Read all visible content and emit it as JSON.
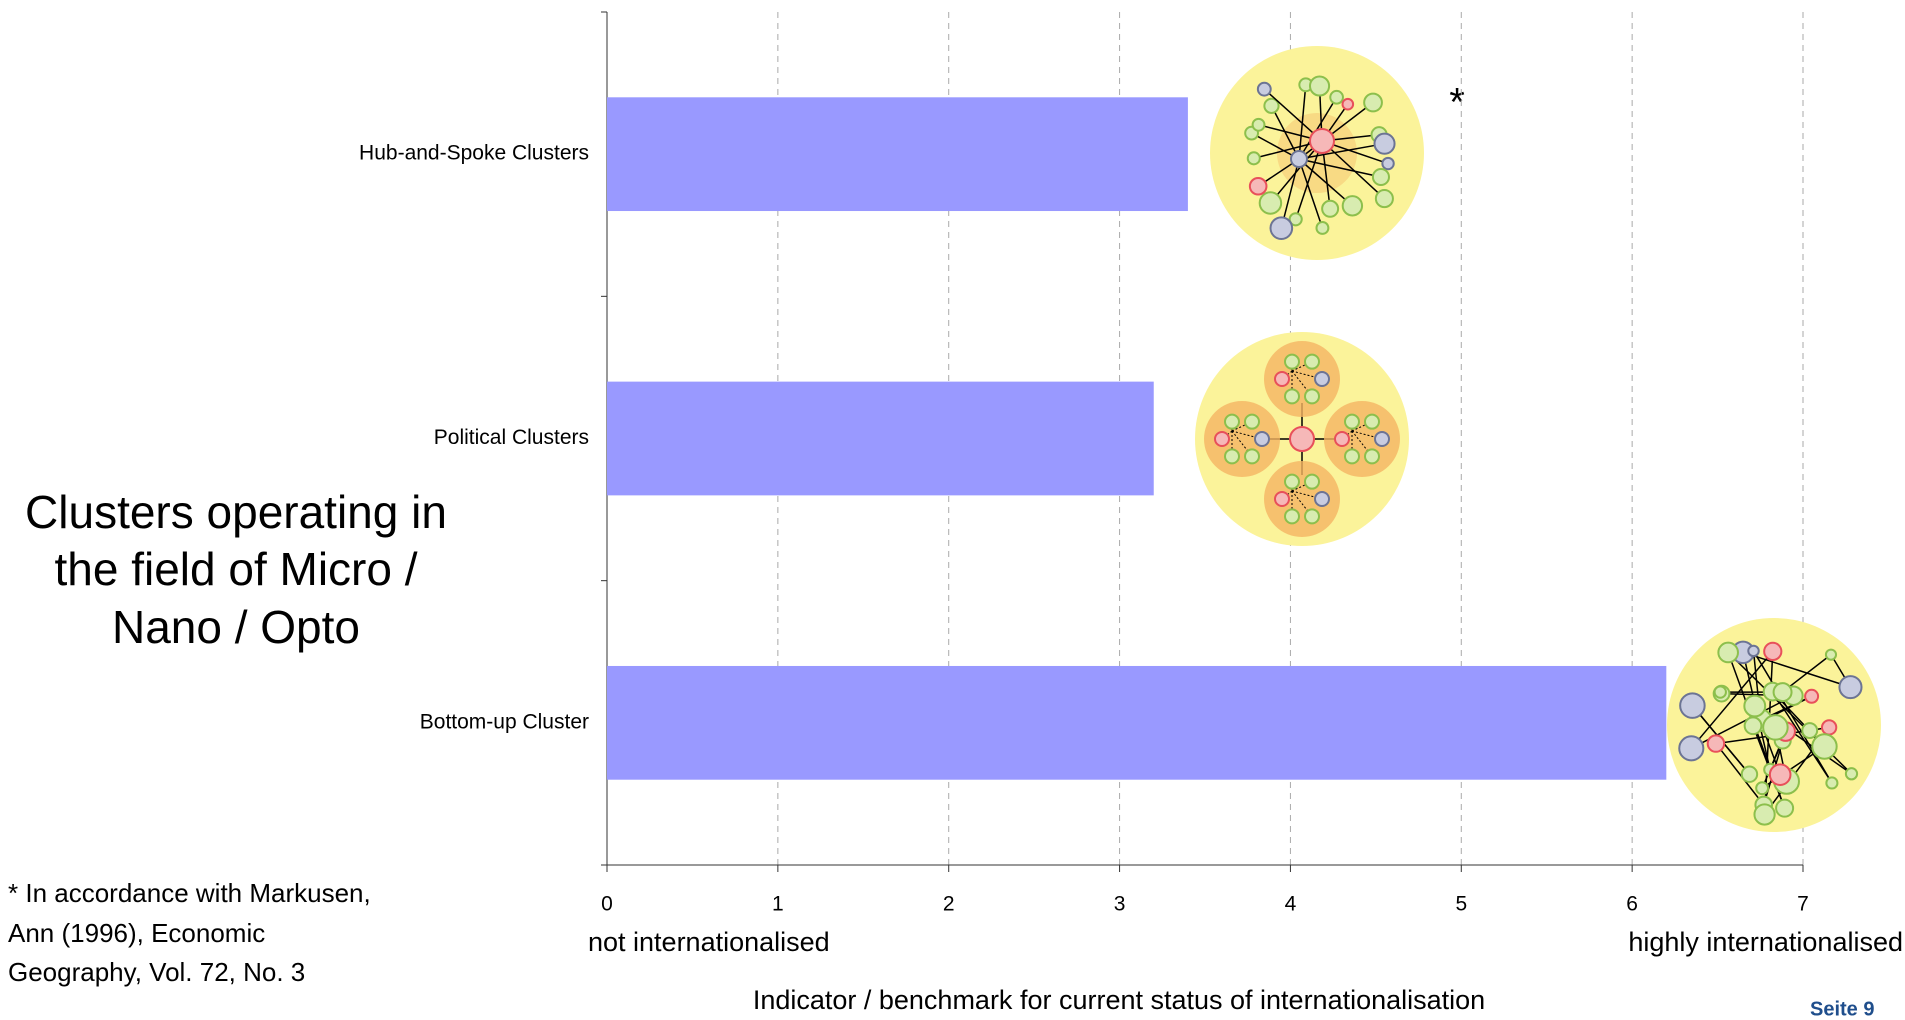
{
  "chart_data": {
    "type": "bar",
    "orientation": "horizontal",
    "categories": [
      "Hub-and-Spoke Clusters",
      "Political Clusters",
      "Bottom-up Cluster"
    ],
    "values": [
      3.4,
      3.2,
      6.2
    ],
    "color": "#9999ff",
    "xlim": [
      0,
      7
    ],
    "xticks": [
      0,
      1,
      2,
      3,
      4,
      5,
      6,
      7
    ],
    "grid": true,
    "x_axis_title": "Indicator / benchmark for current status of internationalisation",
    "x_axis_low_label": "not internationalised",
    "x_axis_high_label": "highly internationalised",
    "annotation": "*"
  },
  "side_label": [
    "Clusters operating in",
    "the field of Micro /",
    "Nano / Opto"
  ],
  "footnote": [
    "* In accordance with Markusen,",
    "Ann (1996), Economic",
    "Geography, Vol. 72, No. 3"
  ],
  "page_label": "Seite 9"
}
